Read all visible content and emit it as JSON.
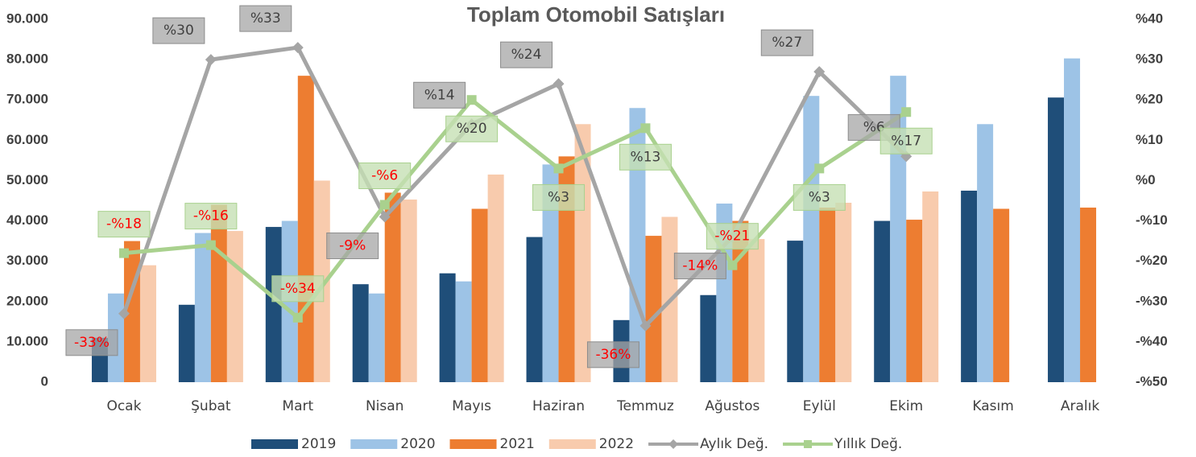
{
  "chart_data": {
    "type": "bar",
    "title": "Toplam Otomobil Satışları",
    "categories": [
      "Ocak",
      "Şubat",
      "Mart",
      "Nisan",
      "Mayıs",
      "Haziran",
      "Temmuz",
      "Ağustos",
      "Eylül",
      "Ekim",
      "Kasım",
      "Aralık"
    ],
    "series": [
      {
        "name": "2019",
        "color": "#1f4e79",
        "values": [
          11000,
          19200,
          38500,
          24300,
          27000,
          36000,
          15400,
          21600,
          35100,
          40000,
          47500,
          70600
        ]
      },
      {
        "name": "2020",
        "color": "#9dc3e6",
        "values": [
          22000,
          37000,
          40000,
          22000,
          25000,
          54000,
          68000,
          44300,
          71000,
          76000,
          64000,
          80300
        ]
      },
      {
        "name": "2021",
        "color": "#ed7d31",
        "values": [
          35000,
          44000,
          76000,
          47000,
          43000,
          56000,
          36300,
          40000,
          43300,
          40300,
          43000,
          43300
        ]
      },
      {
        "name": "2022",
        "color": "#f8cbad",
        "values": [
          29000,
          37500,
          50000,
          45300,
          51500,
          64000,
          41000,
          35500,
          44500,
          47300,
          null,
          null
        ]
      },
      {
        "name": "Aylık Değ.",
        "type": "line",
        "axis": "y2",
        "color": "#a5a5a5",
        "marker": "diamond",
        "values": [
          -33,
          30,
          33,
          -9,
          14,
          24,
          -36,
          -14,
          27,
          6,
          null,
          null
        ],
        "value_labels": [
          "-33%",
          "%30",
          "%33",
          "-9%",
          "%14",
          "%24",
          "-36%",
          "-14%",
          "%27",
          "%6",
          null,
          null
        ]
      },
      {
        "name": "Yıllık Değ.",
        "type": "line",
        "axis": "y2",
        "color": "#a9d18e",
        "marker": "square",
        "values": [
          -18,
          -16,
          -34,
          -6,
          20,
          3,
          13,
          -21,
          3,
          17,
          null,
          null
        ],
        "value_labels": [
          "-%18",
          "-%16",
          "-%34",
          "-%6",
          "%20",
          "%3",
          "%13",
          "-%21",
          "%3",
          "%17",
          null,
          null
        ]
      }
    ],
    "ylim": [
      0,
      90000
    ],
    "yticks": [
      0,
      {
        "value": 10000,
        "label": "10.000"
      },
      {
        "value": 20000,
        "label": "20.000"
      },
      {
        "value": 30000,
        "label": "30.000"
      },
      {
        "value": 40000,
        "label": "40.000"
      },
      {
        "value": 50000,
        "label": "50.000"
      },
      {
        "value": 60000,
        "label": "60.000"
      },
      {
        "value": 70000,
        "label": "70.000"
      },
      {
        "value": 80000,
        "label": "80.000"
      },
      {
        "value": 90000,
        "label": "90.000"
      }
    ],
    "y2lim": [
      -50,
      40
    ],
    "y2ticks": [
      {
        "value": -50,
        "label": "-%50"
      },
      {
        "value": -40,
        "label": "-%40"
      },
      {
        "value": -30,
        "label": "-%30"
      },
      {
        "value": -20,
        "label": "-%20"
      },
      {
        "value": -10,
        "label": "-%10"
      },
      {
        "value": 0,
        "label": "%0"
      },
      {
        "value": 10,
        "label": "%10"
      },
      {
        "value": 20,
        "label": "%20"
      },
      {
        "value": 30,
        "label": "%30"
      },
      {
        "value": 40,
        "label": "%40"
      }
    ],
    "negative_color": "#ff0000",
    "legend": "bottom",
    "grid": false
  }
}
